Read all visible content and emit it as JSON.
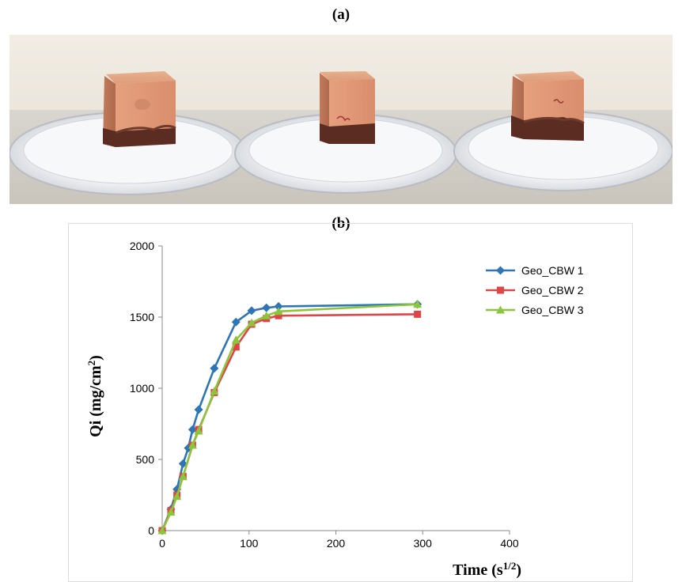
{
  "panels": {
    "a": "(a)",
    "b": "(b)"
  },
  "chart_data": {
    "type": "line",
    "title": "",
    "xlabel": "Time",
    "xlabel_unit": "(s",
    "xlabel_sup": "1/2",
    "xlabel_close": ")",
    "ylabel": "Qi (mg/cm",
    "ylabel_sup": "2",
    "ylabel_close": ")",
    "xlim": [
      0,
      400
    ],
    "ylim": [
      0,
      2000
    ],
    "xticks": [
      0,
      100,
      200,
      300,
      400
    ],
    "yticks": [
      0,
      500,
      1000,
      1500,
      2000
    ],
    "grid": false,
    "legend_position": "top-right",
    "series": [
      {
        "name": "Geo_CBW 1",
        "color": "#2e75b6",
        "marker": "diamond",
        "x": [
          0,
          10,
          17,
          24,
          30,
          35,
          42,
          60,
          85,
          103,
          120,
          134,
          294
        ],
        "y": [
          0,
          150,
          290,
          470,
          580,
          710,
          850,
          1140,
          1465,
          1545,
          1565,
          1575,
          1590
        ]
      },
      {
        "name": "Geo_CBW 2",
        "color": "#e04545",
        "marker": "square",
        "x": [
          0,
          10,
          17,
          24,
          35,
          42,
          60,
          85,
          103,
          120,
          134,
          294
        ],
        "y": [
          0,
          140,
          250,
          380,
          600,
          710,
          970,
          1290,
          1450,
          1490,
          1510,
          1520
        ]
      },
      {
        "name": "Geo_CBW 3",
        "color": "#8cc43c",
        "marker": "triangle",
        "x": [
          0,
          10,
          17,
          24,
          35,
          42,
          60,
          85,
          103,
          120,
          134,
          294
        ],
        "y": [
          0,
          130,
          240,
          380,
          600,
          700,
          980,
          1340,
          1460,
          1510,
          1540,
          1590
        ]
      }
    ]
  }
}
